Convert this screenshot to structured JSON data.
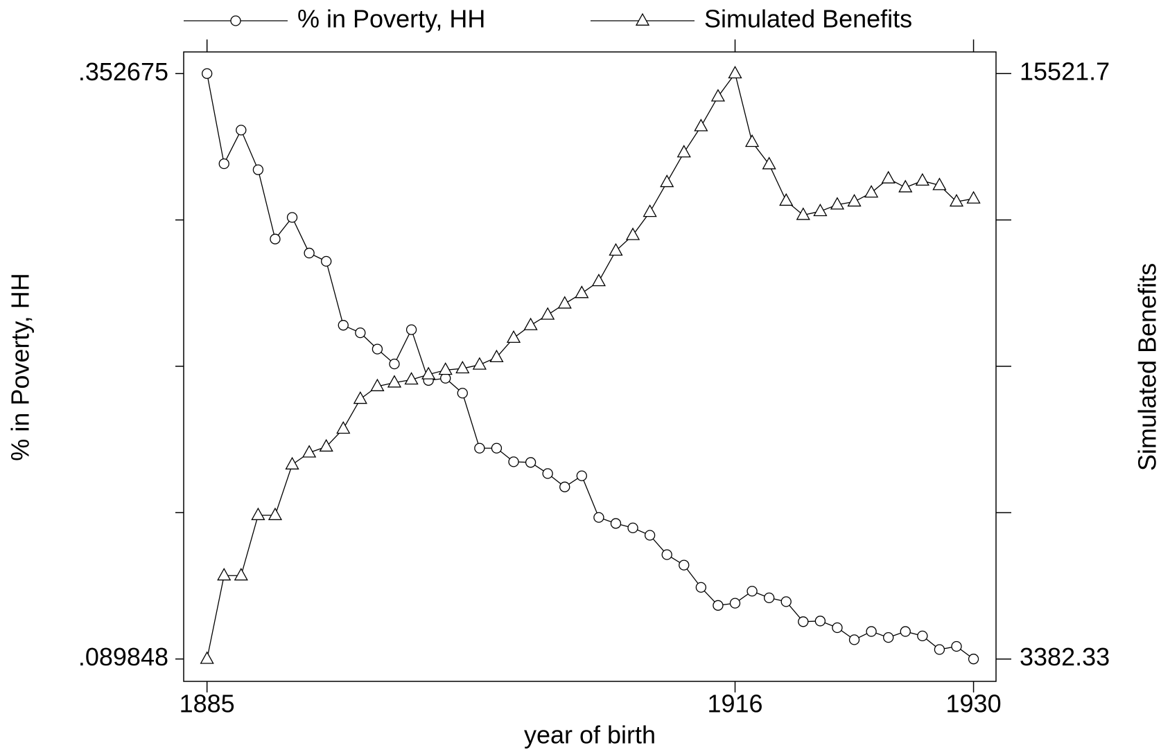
{
  "chart_data": {
    "type": "line",
    "x_label": "year of birth",
    "y_label": "% in Poverty, HH",
    "y2_label": "Simulated Benefits",
    "x": [
      1885,
      1886,
      1887,
      1888,
      1889,
      1890,
      1891,
      1892,
      1893,
      1894,
      1895,
      1896,
      1897,
      1898,
      1899,
      1900,
      1901,
      1902,
      1903,
      1904,
      1905,
      1906,
      1907,
      1908,
      1909,
      1910,
      1911,
      1912,
      1913,
      1914,
      1915,
      1916,
      1917,
      1918,
      1919,
      1920,
      1921,
      1922,
      1923,
      1924,
      1925,
      1926,
      1927,
      1928,
      1929,
      1930
    ],
    "series": [
      {
        "name": "% in Poverty, HH",
        "color": "#000000",
        "marker": "circle",
        "values": [
          0.352675,
          0.3122,
          0.3273,
          0.3095,
          0.2784,
          0.2881,
          0.2721,
          0.2684,
          0.2397,
          0.2363,
          0.229,
          0.2223,
          0.2377,
          0.2149,
          0.2159,
          0.2092,
          0.1845,
          0.1845,
          0.1784,
          0.1781,
          0.1731,
          0.1671,
          0.1721,
          0.1534,
          0.1507,
          0.1487,
          0.1454,
          0.1367,
          0.132,
          0.122,
          0.1139,
          0.1149,
          0.1203,
          0.1173,
          0.1156,
          0.1066,
          0.1069,
          0.1039,
          0.0985,
          0.1022,
          0.0995,
          0.1022,
          0.1002,
          0.0941,
          0.0955,
          0.089848
        ]
      },
      {
        "name": "Simulated Benefits",
        "color": "#000000",
        "marker": "triangle",
        "axis": "y2",
        "values": [
          3382.33,
          5112,
          5112,
          6363,
          6363,
          7413,
          7661,
          7784,
          8155,
          8773,
          9035,
          9112,
          9174,
          9282,
          9375,
          9406,
          9483,
          9637,
          10039,
          10301,
          10518,
          10749,
          10966,
          11213,
          11846,
          12170,
          12649,
          13267,
          13884,
          14425,
          15043,
          15521.7,
          14101,
          13637,
          12881,
          12587,
          12665,
          12803,
          12865,
          13051,
          13344,
          13159,
          13298,
          13205,
          12865,
          12927
        ]
      }
    ],
    "xlim": [
      1883.63,
      1931.32
    ],
    "xticks": [
      1885,
      1916,
      1930
    ],
    "ylim": [
      0.0798,
      0.3624
    ],
    "yticks": [
      {
        "value": 0.089848,
        "label": ".089848"
      },
      {
        "value": 0.155555,
        "label": null
      },
      {
        "value": 0.221262,
        "label": null
      },
      {
        "value": 0.28697,
        "label": null
      },
      {
        "value": 0.352675,
        "label": ".352675"
      }
    ],
    "y2lim": [
      2919,
      15970
    ],
    "y2ticks": [
      {
        "value": 3382.33,
        "label": "3382.33"
      },
      {
        "value": 6417.2,
        "label": null
      },
      {
        "value": 9452.0,
        "label": null
      },
      {
        "value": 12486.8,
        "label": null
      },
      {
        "value": 15521.7,
        "label": "15521.7"
      }
    ],
    "grid": false,
    "legend": "top"
  }
}
